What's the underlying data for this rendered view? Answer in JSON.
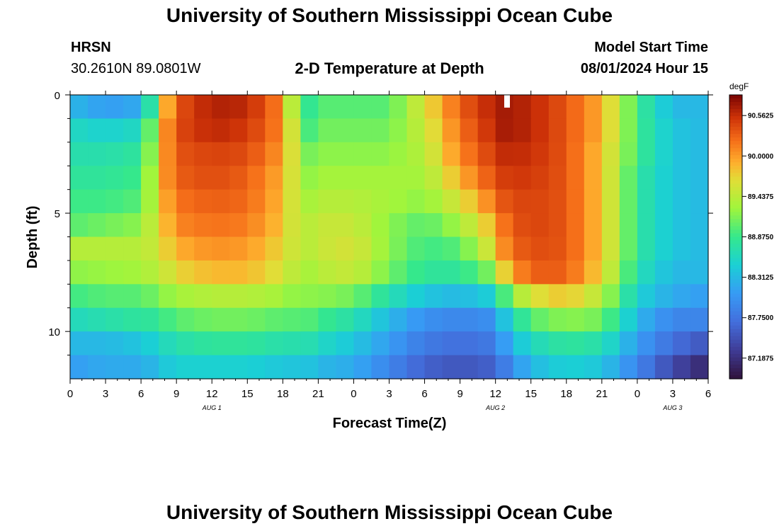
{
  "header": {
    "title": "University of Southern Mississippi Ocean Cube",
    "station": "HRSN",
    "coordinates": "30.2610N  89.0801W",
    "plot_title": "2-D Temperature at Depth",
    "model_label": "Model Start Time",
    "model_time": "08/01/2024 Hour 15"
  },
  "footer": {
    "title": "University of Southern Mississippi Ocean Cube"
  },
  "chart_data": {
    "type": "heatmap",
    "title": "2-D Temperature at Depth",
    "xlabel": "Forecast Time(Z)",
    "ylabel": "Depth (ft)",
    "units": "degF",
    "xlim": [
      0,
      54
    ],
    "ylim": [
      0,
      12
    ],
    "x_tick_hours": [
      0,
      3,
      6,
      9,
      12,
      15,
      18,
      21,
      24,
      27,
      30,
      33,
      36,
      39,
      42,
      45,
      48,
      51,
      54
    ],
    "x_tick_labels": [
      "0",
      "3",
      "6",
      "9",
      "12",
      "15",
      "18",
      "21",
      "0",
      "3",
      "6",
      "9",
      "12",
      "15",
      "18",
      "21",
      "0",
      "3",
      "6"
    ],
    "date_labels": [
      {
        "hour": 12,
        "label": "AUG 1"
      },
      {
        "hour": 36,
        "label": "AUG 2"
      },
      {
        "hour": 51,
        "label": "AUG 3"
      }
    ],
    "y_ticks": [
      0,
      5,
      10
    ],
    "y_tick_labels": [
      "0",
      "5",
      "10"
    ],
    "colorbar": {
      "min": 86.9,
      "max": 90.85,
      "tick_values": [
        90.5625,
        90.0,
        89.4375,
        88.875,
        88.3125,
        87.75,
        87.1875
      ],
      "tick_labels": [
        "90.5625",
        "90.0000",
        "89.4375",
        "88.8750",
        "88.3125",
        "87.7500",
        "87.1875"
      ]
    },
    "layers": [
      0.5,
      1.5,
      2.5,
      3.5,
      4.5,
      5.5,
      6.5,
      7.5,
      8.5,
      9.5,
      10.5,
      11.5
    ],
    "time_hours": [
      0,
      3,
      6,
      7,
      8,
      9,
      12,
      15,
      18,
      19,
      20,
      21,
      24,
      27,
      30,
      33,
      36,
      37,
      39,
      42,
      45,
      48,
      51,
      54
    ],
    "temperature_degF": [
      [
        88.3,
        88.1,
        88.2,
        88.9,
        89.8,
        90.35,
        90.65,
        90.6,
        90.1,
        89.2,
        88.8,
        89.0,
        89.0,
        89.0,
        89.6,
        90.3,
        90.65,
        90.7,
        90.6,
        90.35,
        89.9,
        88.9,
        88.3,
        88.3
      ],
      [
        88.6,
        88.5,
        88.6,
        89.2,
        90.0,
        90.4,
        90.6,
        90.5,
        90.1,
        89.4,
        88.9,
        89.1,
        89.1,
        89.1,
        89.5,
        90.2,
        90.6,
        90.7,
        90.6,
        90.35,
        89.9,
        88.9,
        88.4,
        88.3
      ],
      [
        88.7,
        88.7,
        88.8,
        89.3,
        90.0,
        90.35,
        90.45,
        90.4,
        90.0,
        89.5,
        89.1,
        89.2,
        89.2,
        89.2,
        89.4,
        90.1,
        90.5,
        90.6,
        90.55,
        90.35,
        89.8,
        88.9,
        88.4,
        88.3
      ],
      [
        88.8,
        88.8,
        88.9,
        89.4,
        90.0,
        90.3,
        90.4,
        90.3,
        89.9,
        89.5,
        89.2,
        89.3,
        89.3,
        89.3,
        89.3,
        89.9,
        90.4,
        90.5,
        90.5,
        90.35,
        89.8,
        88.8,
        88.4,
        88.3
      ],
      [
        88.9,
        88.9,
        89.0,
        89.4,
        89.9,
        90.2,
        90.3,
        90.25,
        89.85,
        89.5,
        89.3,
        89.4,
        89.4,
        89.3,
        89.2,
        89.6,
        90.2,
        90.4,
        90.45,
        90.35,
        89.8,
        88.8,
        88.4,
        88.3
      ],
      [
        89.0,
        89.1,
        89.2,
        89.5,
        89.8,
        90.1,
        90.2,
        90.15,
        89.8,
        89.5,
        89.4,
        89.5,
        89.5,
        89.2,
        89.0,
        89.3,
        89.9,
        90.3,
        90.45,
        90.35,
        89.8,
        88.8,
        88.4,
        88.3
      ],
      [
        89.4,
        89.4,
        89.4,
        89.5,
        89.7,
        89.9,
        90.05,
        90.0,
        89.7,
        89.5,
        89.4,
        89.5,
        89.6,
        89.2,
        88.9,
        89.0,
        89.7,
        90.2,
        90.4,
        90.35,
        89.8,
        88.8,
        88.4,
        88.3
      ],
      [
        89.2,
        89.25,
        89.3,
        89.4,
        89.5,
        89.7,
        89.85,
        89.85,
        89.6,
        89.4,
        89.3,
        89.4,
        89.5,
        89.1,
        88.8,
        88.8,
        89.2,
        89.9,
        90.3,
        90.3,
        89.7,
        88.7,
        88.3,
        88.3
      ],
      [
        88.9,
        89.0,
        89.0,
        89.1,
        89.2,
        89.3,
        89.4,
        89.4,
        89.3,
        89.2,
        89.2,
        89.2,
        89.1,
        88.7,
        88.4,
        88.3,
        88.5,
        89.1,
        89.6,
        89.8,
        89.4,
        88.5,
        88.2,
        88.1
      ],
      [
        88.6,
        88.7,
        88.8,
        88.8,
        88.9,
        89.0,
        89.1,
        89.1,
        89.0,
        89.0,
        89.0,
        88.9,
        88.7,
        88.3,
        88.0,
        87.9,
        88.0,
        88.5,
        89.0,
        89.2,
        89.1,
        88.3,
        87.9,
        87.9
      ],
      [
        88.3,
        88.3,
        88.4,
        88.5,
        88.6,
        88.7,
        88.8,
        88.8,
        88.7,
        88.7,
        88.7,
        88.6,
        88.4,
        88.1,
        87.8,
        87.7,
        87.8,
        88.2,
        88.6,
        88.8,
        88.7,
        88.1,
        87.7,
        87.5
      ],
      [
        88.1,
        88.2,
        88.2,
        88.3,
        88.4,
        88.5,
        88.5,
        88.5,
        88.4,
        88.4,
        88.4,
        88.3,
        88.2,
        87.9,
        87.6,
        87.5,
        87.6,
        87.9,
        88.3,
        88.5,
        88.4,
        87.9,
        87.4,
        87.1
      ]
    ]
  }
}
